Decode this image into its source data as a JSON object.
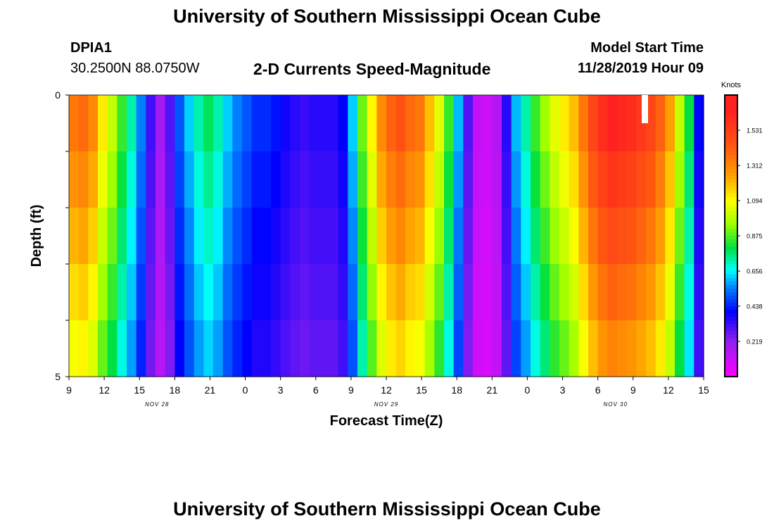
{
  "header": {
    "title": "University of Southern Mississippi Ocean Cube",
    "station_id": "DPIA1",
    "station_coords": "30.2500N 88.0750W",
    "plot_title": "2-D Currents Speed-Magnitude",
    "model_start_label": "Model Start Time",
    "model_start_value": "11/28/2019 Hour 09"
  },
  "footer": {
    "title": "University of Southern Mississippi Ocean Cube"
  },
  "chart_data": {
    "type": "heatmap",
    "title": "2-D Currents Speed-Magnitude",
    "xlabel": "Forecast Time(Z)",
    "ylabel": "Depth (ft)",
    "x_tick_labels": [
      "9",
      "12",
      "15",
      "18",
      "21",
      "0",
      "3",
      "6",
      "9",
      "12",
      "15",
      "18",
      "21",
      "0",
      "3",
      "6",
      "9",
      "12",
      "15"
    ],
    "x_date_labels": [
      {
        "label": "NOV 28",
        "hour_offset": 7.5
      },
      {
        "label": "NOV 29",
        "hour_offset": 27
      },
      {
        "label": "NOV 30",
        "hour_offset": 46.5
      }
    ],
    "x_range_hours": [
      0,
      54
    ],
    "y_tick_labels": [
      "0",
      "5"
    ],
    "ylim": [
      0,
      5
    ],
    "colorbar": {
      "unit": "Knots",
      "tick_labels": [
        "1.531",
        "1.312",
        "1.094",
        "0.875",
        "0.656",
        "0.438",
        "0.219"
      ],
      "min": 0,
      "max": 1.75
    },
    "colors": {
      "magenta": "#ff00ff",
      "violet": "#9020f0",
      "blue": "#0000ff",
      "azure": "#0080ff",
      "cyan": "#00ffff",
      "green": "#00e040",
      "yellow_green": "#a0ff00",
      "yellow": "#ffff00",
      "orange": "#ffa000",
      "red_orange": "#ff5a10",
      "red": "#ff2020"
    },
    "depth_levels": 5,
    "speed_knots_at_top_layer": [
      1.35,
      1.38,
      1.3,
      1.12,
      1.0,
      0.85,
      0.72,
      0.55,
      0.32,
      0.18,
      0.3,
      0.5,
      0.62,
      0.72,
      0.78,
      0.72,
      0.62,
      0.55,
      0.5,
      0.45,
      0.45,
      0.42,
      0.38,
      0.35,
      0.33,
      0.35,
      0.35,
      0.35,
      0.4,
      0.62,
      0.9,
      1.1,
      1.3,
      1.4,
      1.45,
      1.38,
      1.35,
      1.2,
      1.05,
      0.85,
      0.6,
      0.3,
      0.12,
      0.1,
      0.15,
      0.35,
      0.6,
      0.72,
      0.85,
      0.95,
      1.05,
      1.12,
      1.2,
      1.35,
      1.5,
      1.6,
      1.65,
      1.62,
      1.6,
      1.55,
      1.5,
      1.4,
      1.25,
      1.0,
      0.8,
      0.4
    ]
  }
}
